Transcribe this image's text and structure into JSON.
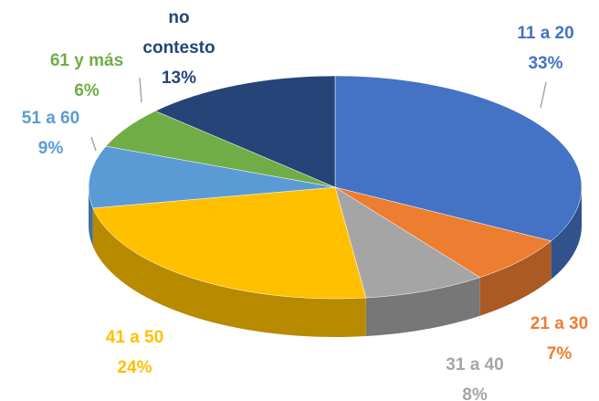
{
  "chart_data": {
    "type": "pie",
    "categories": [
      "11 a 20",
      "21 a 30",
      "31 a 40",
      "41 a 50",
      "51 a 60",
      "61 y más",
      "no contesto"
    ],
    "values": [
      33,
      7,
      8,
      24,
      9,
      6,
      13
    ],
    "value_labels": [
      "33%",
      "7%",
      "8%",
      "24%",
      "9%",
      "6%",
      "13%"
    ],
    "colors": [
      "#4472c4",
      "#ed7d31",
      "#a5a5a5",
      "#ffc000",
      "#5b9bd5",
      "#70ad47",
      "#264478"
    ]
  }
}
